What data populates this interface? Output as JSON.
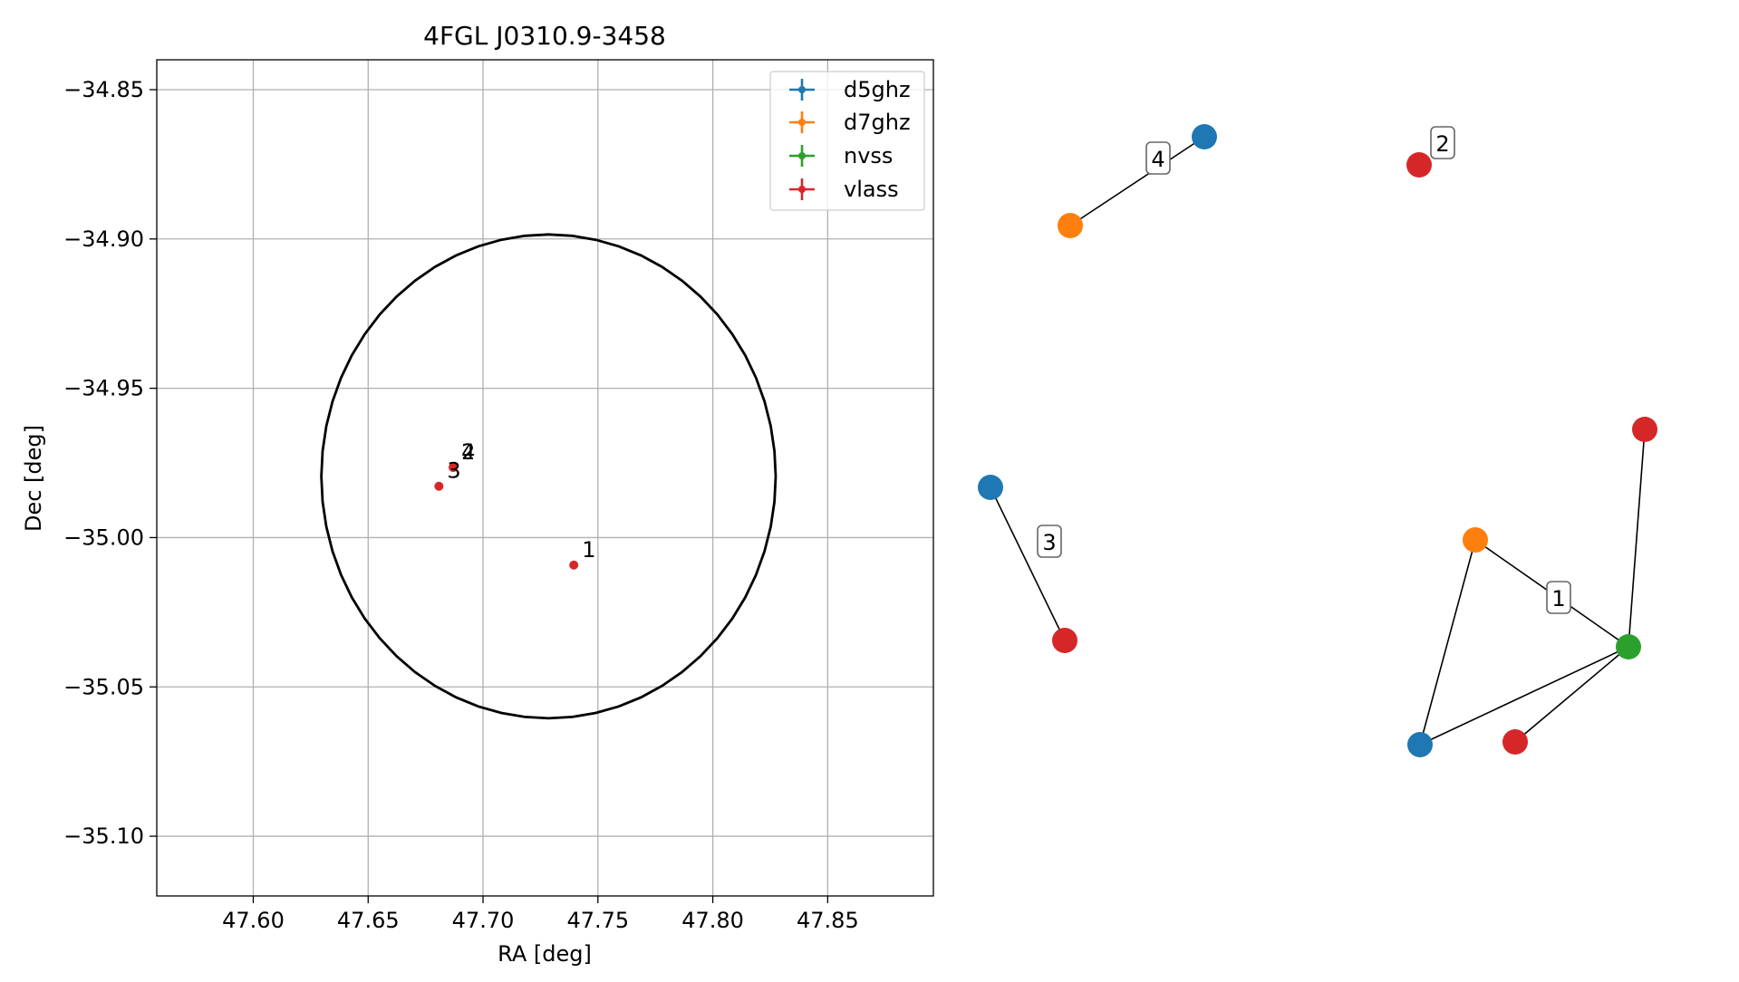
{
  "chart_data": [
    {
      "type": "scatter",
      "title": "4FGL J0310.9-3458",
      "xlabel": "RA [deg]",
      "ylabel": "Dec [deg]",
      "xlim": [
        47.558,
        47.896
      ],
      "ylim": [
        -35.12,
        -34.84
      ],
      "xticks": [
        47.6,
        47.65,
        47.7,
        47.75,
        47.8,
        47.85
      ],
      "xtick_labels": [
        "47.60",
        "47.65",
        "47.70",
        "47.75",
        "47.80",
        "47.85"
      ],
      "yticks": [
        -34.85,
        -34.9,
        -34.95,
        -35.0,
        -35.05,
        -35.1
      ],
      "ytick_labels": [
        "−34.85",
        "−34.90",
        "−34.95",
        "−35.00",
        "−35.05",
        "−35.10"
      ],
      "grid": true,
      "legend_placement": "top-right",
      "series": [
        {
          "name": "d5ghz",
          "color": "#1f77b4",
          "points": []
        },
        {
          "name": "d7ghz",
          "color": "#ff7f0e",
          "points": []
        },
        {
          "name": "nvss",
          "color": "#2ca02c",
          "points": []
        },
        {
          "name": "vlass",
          "color": "#d62728",
          "points": [
            {
              "ra": 47.7395,
              "dec": -35.0092
            },
            {
              "ra": 47.687,
              "dec": -34.9765
            },
            {
              "ra": 47.6808,
              "dec": -34.9828
            },
            {
              "ra": 47.687,
              "dec": -34.9765
            }
          ]
        }
      ],
      "annotations": [
        {
          "text": "1",
          "ra": 47.7395,
          "dec": -35.0092
        },
        {
          "text": "2",
          "ra": 47.687,
          "dec": -34.9765
        },
        {
          "text": "3",
          "ra": 47.6808,
          "dec": -34.9828
        },
        {
          "text": "4",
          "ra": 47.687,
          "dec": -34.9765
        }
      ],
      "circle": {
        "center_ra": 47.7285,
        "center_dec": -34.9795,
        "radius_dec_deg": 0.081,
        "color": "#000000"
      }
    },
    {
      "type": "network",
      "description_labels": [
        "1",
        "2",
        "3",
        "4"
      ],
      "groups": [
        {
          "label": "4",
          "nodes": [
            {
              "id": "g4a",
              "survey": "d5ghz",
              "color": "#1f77b4"
            },
            {
              "id": "g4b",
              "survey": "d7ghz",
              "color": "#ff7f0e"
            }
          ],
          "edges": [
            [
              "g4a",
              "g4b"
            ]
          ]
        },
        {
          "label": "2",
          "nodes": [
            {
              "id": "g2a",
              "survey": "vlass",
              "color": "#d62728"
            }
          ],
          "edges": []
        },
        {
          "label": "3",
          "nodes": [
            {
              "id": "g3a",
              "survey": "d5ghz",
              "color": "#1f77b4"
            },
            {
              "id": "g3b",
              "survey": "vlass",
              "color": "#d62728"
            }
          ],
          "edges": [
            [
              "g3a",
              "g3b"
            ]
          ]
        },
        {
          "label": "1",
          "nodes": [
            {
              "id": "g1a",
              "survey": "vlass",
              "color": "#d62728"
            },
            {
              "id": "g1b",
              "survey": "d7ghz",
              "color": "#ff7f0e"
            },
            {
              "id": "g1c",
              "survey": "nvss",
              "color": "#2ca02c"
            },
            {
              "id": "g1d",
              "survey": "d5ghz",
              "color": "#1f77b4"
            },
            {
              "id": "g1e",
              "survey": "vlass",
              "color": "#d62728"
            }
          ],
          "edges": [
            [
              "g1a",
              "g1c"
            ],
            [
              "g1b",
              "g1c"
            ],
            [
              "g1b",
              "g1d"
            ],
            [
              "g1d",
              "g1c"
            ],
            [
              "g1e",
              "g1c"
            ]
          ]
        }
      ]
    }
  ]
}
